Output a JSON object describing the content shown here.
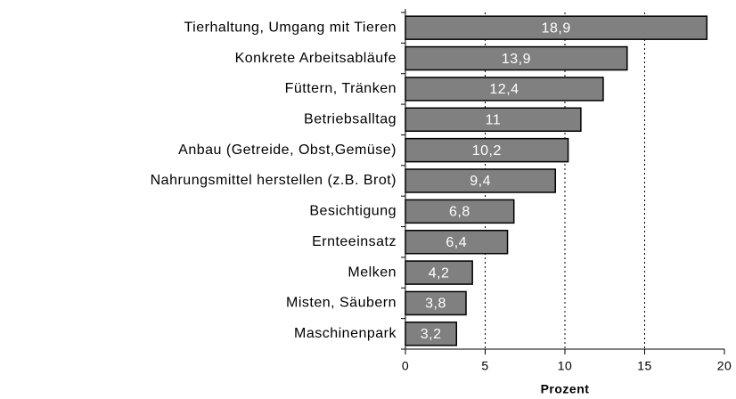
{
  "chart_data": {
    "type": "barh",
    "categories": [
      "Tierhaltung, Umgang mit Tieren",
      "Konkrete Arbeitsabläufe",
      "Füttern, Tränken",
      "Betriebsalltag",
      "Anbau (Getreide, Obst,Gemüse)",
      "Nahrungsmittel herstellen (z.B. Brot)",
      "Besichtigung",
      "Ernteeinsatz",
      "Melken",
      "Misten, Säubern",
      "Maschinenpark"
    ],
    "values": [
      18.9,
      13.9,
      12.4,
      11,
      10.2,
      9.4,
      6.8,
      6.4,
      4.2,
      3.8,
      3.2
    ],
    "value_labels": [
      "18,9",
      "13,9",
      "12,4",
      "11",
      "10,2",
      "9,4",
      "6,8",
      "6,4",
      "4,2",
      "3,8",
      "3,2"
    ],
    "color": "#808080",
    "xlabel": "Prozent",
    "xlim": [
      0,
      20
    ],
    "xticks": [
      0,
      5,
      10,
      15,
      20
    ],
    "grid": true
  }
}
